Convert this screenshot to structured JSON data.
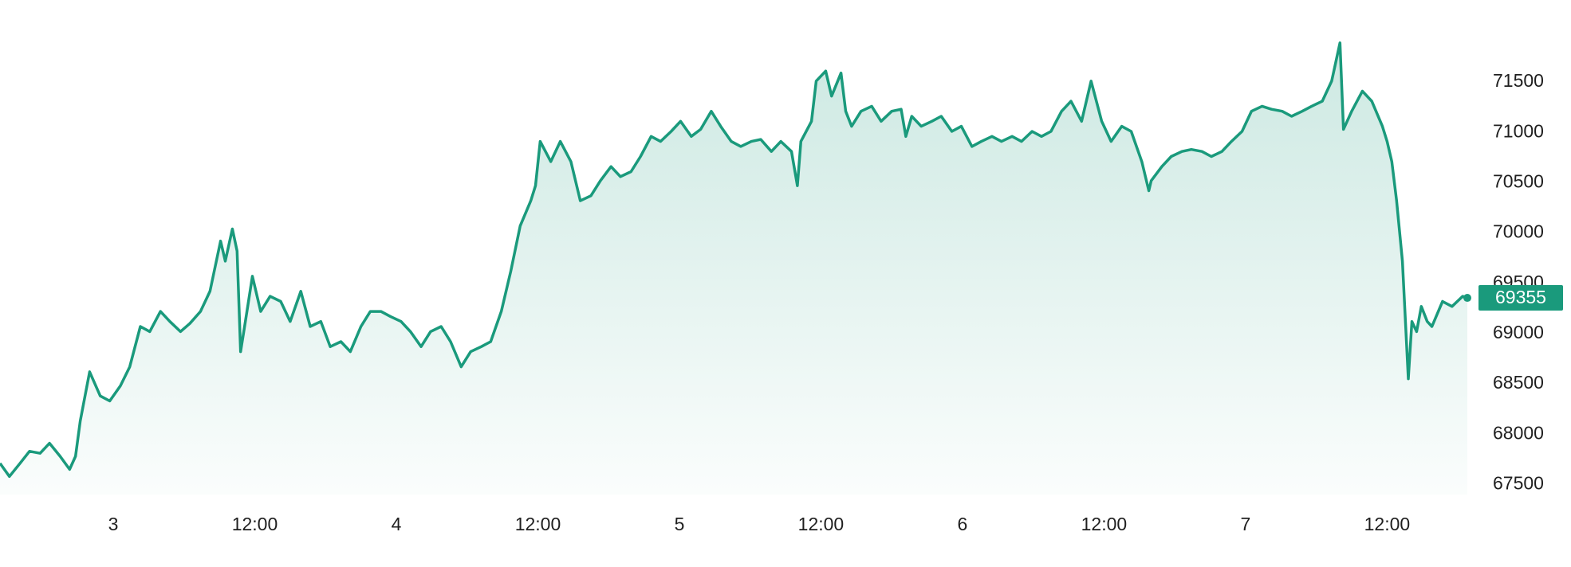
{
  "chart_data": {
    "type": "area",
    "color": "#1a9a7c",
    "x": [
      -9.6,
      -8.8,
      -7.9,
      -7.1,
      -6.2,
      -5.4,
      -4.5,
      -3.7,
      -3.2,
      -2.8,
      -2.0,
      -1.1,
      -0.3,
      0.6,
      1.4,
      2.3,
      3.1,
      4.0,
      4.8,
      5.7,
      6.5,
      7.4,
      8.2,
      9.1,
      9.5,
      10.1,
      10.5,
      10.8,
      11.2,
      11.8,
      12.5,
      13.3,
      14.2,
      15.0,
      15.9,
      16.7,
      17.6,
      18.4,
      19.3,
      20.1,
      21.0,
      21.8,
      22.7,
      23.5,
      24.4,
      25.2,
      26.1,
      26.9,
      27.8,
      28.6,
      29.5,
      30.3,
      31.2,
      32.0,
      32.9,
      33.7,
      34.5,
      35.4,
      35.8,
      36.2,
      37.1,
      37.9,
      38.8,
      39.6,
      40.5,
      41.3,
      42.2,
      43.0,
      43.9,
      44.7,
      45.6,
      46.4,
      47.3,
      48.1,
      49.0,
      49.8,
      50.7,
      51.5,
      52.4,
      53.2,
      54.1,
      54.9,
      55.8,
      56.6,
      57.5,
      58.0,
      58.3,
      59.2,
      59.6,
      60.4,
      60.9,
      61.7,
      62.1,
      62.6,
      63.4,
      64.3,
      65.1,
      66.0,
      66.8,
      67.2,
      67.7,
      68.5,
      69.4,
      70.2,
      71.1,
      71.9,
      72.8,
      73.6,
      74.5,
      75.3,
      76.2,
      77.0,
      77.9,
      78.7,
      79.5,
      80.4,
      81.2,
      82.1,
      82.9,
      83.8,
      84.6,
      85.5,
      86.3,
      87.2,
      87.8,
      88.0,
      88.9,
      89.7,
      90.6,
      91.4,
      92.3,
      93.1,
      94.0,
      94.8,
      95.7,
      96.5,
      97.4,
      98.2,
      99.1,
      99.9,
      100.8,
      101.6,
      102.5,
      103.3,
      104.0,
      104.3,
      105.0,
      105.9,
      106.7,
      107.6,
      108.0,
      108.4,
      108.8,
      109.3,
      109.8,
      110.1,
      110.5,
      110.9,
      111.4,
      111.8,
      112.7,
      113.5,
      114.4,
      114.8
    ],
    "values": [
      67710,
      67580,
      67710,
      67830,
      67810,
      67910,
      67780,
      67650,
      67780,
      68130,
      68620,
      68380,
      68330,
      68480,
      68670,
      69070,
      69020,
      69220,
      69120,
      69020,
      69100,
      69220,
      69420,
      69920,
      69720,
      70040,
      69820,
      68820,
      69120,
      69570,
      69220,
      69370,
      69320,
      69120,
      69420,
      69070,
      69120,
      68870,
      68920,
      68820,
      69070,
      69220,
      69220,
      69170,
      69120,
      69020,
      68870,
      69020,
      69070,
      68920,
      68670,
      68820,
      68870,
      68920,
      69220,
      69620,
      70070,
      70320,
      70470,
      70910,
      70710,
      70910,
      70710,
      70320,
      70370,
      70520,
      70660,
      70560,
      70610,
      70760,
      70960,
      70910,
      71010,
      71110,
      70960,
      71030,
      71210,
      71060,
      70910,
      70860,
      70910,
      70930,
      70810,
      70910,
      70810,
      70470,
      70910,
      71110,
      71510,
      71610,
      71360,
      71590,
      71210,
      71060,
      71210,
      71260,
      71110,
      71210,
      71230,
      70960,
      71160,
      71060,
      71110,
      71160,
      71010,
      71060,
      70860,
      70910,
      70960,
      70910,
      70960,
      70910,
      71010,
      70960,
      71010,
      71210,
      71310,
      71110,
      71510,
      71110,
      70910,
      71060,
      71010,
      70710,
      70420,
      70520,
      70660,
      70760,
      70810,
      70830,
      70810,
      70760,
      70810,
      70910,
      71010,
      71210,
      71260,
      71230,
      71210,
      71160,
      71210,
      71260,
      71310,
      71510,
      71890,
      71030,
      71210,
      71410,
      71310,
      71060,
      70910,
      70710,
      70320,
      69720,
      68550,
      69120,
      69020,
      69270,
      69120,
      69070,
      69320,
      69270,
      69370,
      69355
    ],
    "xlim": [
      -9.6,
      114.8
    ],
    "xticks": [
      {
        "value": 0,
        "label": "3"
      },
      {
        "value": 12,
        "label": "12:00"
      },
      {
        "value": 24,
        "label": "4"
      },
      {
        "value": 36,
        "label": "12:00"
      },
      {
        "value": 48,
        "label": "5"
      },
      {
        "value": 60,
        "label": "12:00"
      },
      {
        "value": 72,
        "label": "6"
      },
      {
        "value": 84,
        "label": "12:00"
      },
      {
        "value": 96,
        "label": "7"
      },
      {
        "value": 108,
        "label": "12:00"
      }
    ],
    "ylim": [
      67400,
      72300
    ],
    "yticks": [
      67500,
      68000,
      68500,
      69000,
      69500,
      70000,
      70500,
      71000,
      71500
    ],
    "grid": false
  }
}
